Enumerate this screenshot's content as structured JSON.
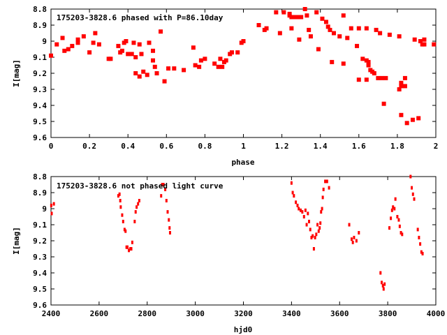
{
  "chart_data": [
    {
      "type": "scatter",
      "title": "175203-3828.6 phased with P=86.10day",
      "xlabel": "phase",
      "ylabel": "I[mag]",
      "xlim": [
        0,
        2
      ],
      "ylim": [
        9.6,
        8.8
      ],
      "y_inverted": true,
      "grid": false,
      "marker_color": "#ff0000",
      "x_ticks": [
        "0",
        "0.2",
        "0.4",
        "0.6",
        "0.8",
        "1",
        "1.2",
        "1.4",
        "1.6",
        "1.8",
        "2"
      ],
      "y_ticks": [
        "8.8",
        "8.9",
        "9",
        "9.1",
        "9.2",
        "9.3",
        "9.4",
        "9.5",
        "9.6"
      ],
      "points": [
        [
          0.0,
          9.09
        ],
        [
          0.03,
          9.02
        ],
        [
          0.06,
          8.98
        ],
        [
          0.07,
          9.06
        ],
        [
          0.09,
          9.05
        ],
        [
          0.11,
          9.03
        ],
        [
          0.14,
          9.01
        ],
        [
          0.14,
          8.99
        ],
        [
          0.17,
          8.97
        ],
        [
          0.2,
          9.07
        ],
        [
          0.22,
          9.01
        ],
        [
          0.23,
          8.95
        ],
        [
          0.25,
          9.02
        ],
        [
          0.3,
          9.11
        ],
        [
          0.31,
          9.11
        ],
        [
          0.35,
          9.03
        ],
        [
          0.36,
          9.07
        ],
        [
          0.37,
          9.06
        ],
        [
          0.38,
          9.01
        ],
        [
          0.39,
          9.0
        ],
        [
          0.4,
          9.08
        ],
        [
          0.42,
          9.08
        ],
        [
          0.43,
          9.01
        ],
        [
          0.44,
          9.1
        ],
        [
          0.44,
          9.2
        ],
        [
          0.46,
          9.22
        ],
        [
          0.46,
          9.02
        ],
        [
          0.47,
          9.08
        ],
        [
          0.48,
          9.19
        ],
        [
          0.5,
          9.21
        ],
        [
          0.51,
          9.01
        ],
        [
          0.53,
          9.06
        ],
        [
          0.53,
          9.12
        ],
        [
          0.54,
          9.16
        ],
        [
          0.55,
          9.2
        ],
        [
          0.57,
          8.94
        ],
        [
          0.59,
          9.25
        ],
        [
          0.61,
          9.17
        ],
        [
          0.64,
          9.17
        ],
        [
          0.69,
          9.18
        ],
        [
          0.74,
          9.04
        ],
        [
          0.75,
          9.15
        ],
        [
          0.77,
          9.16
        ],
        [
          0.78,
          9.12
        ],
        [
          0.8,
          9.11
        ],
        [
          0.85,
          9.14
        ],
        [
          0.87,
          9.16
        ],
        [
          0.88,
          9.11
        ],
        [
          0.89,
          9.16
        ],
        [
          0.9,
          9.13
        ],
        [
          0.91,
          9.12
        ],
        [
          0.93,
          9.08
        ],
        [
          0.94,
          9.07
        ],
        [
          0.97,
          9.07
        ],
        [
          0.99,
          9.01
        ],
        [
          1.0,
          9.0
        ],
        [
          1.08,
          8.9
        ],
        [
          1.11,
          8.93
        ],
        [
          1.12,
          8.92
        ],
        [
          1.17,
          8.82
        ],
        [
          1.19,
          8.95
        ],
        [
          1.21,
          8.82
        ],
        [
          1.24,
          8.83
        ],
        [
          1.24,
          8.84
        ],
        [
          1.25,
          8.85
        ],
        [
          1.25,
          8.92
        ],
        [
          1.26,
          8.85
        ],
        [
          1.28,
          8.85
        ],
        [
          1.29,
          8.99
        ],
        [
          1.3,
          8.85
        ],
        [
          1.32,
          8.8
        ],
        [
          1.33,
          8.84
        ],
        [
          1.34,
          8.93
        ],
        [
          1.35,
          8.97
        ],
        [
          1.38,
          8.82
        ],
        [
          1.39,
          9.05
        ],
        [
          1.41,
          8.86
        ],
        [
          1.43,
          8.88
        ],
        [
          1.44,
          8.91
        ],
        [
          1.45,
          8.93
        ],
        [
          1.46,
          9.13
        ],
        [
          1.47,
          8.95
        ],
        [
          1.5,
          8.97
        ],
        [
          1.52,
          8.84
        ],
        [
          1.52,
          9.14
        ],
        [
          1.54,
          8.98
        ],
        [
          1.56,
          8.92
        ],
        [
          1.59,
          9.03
        ],
        [
          1.6,
          9.24
        ],
        [
          1.6,
          8.92
        ],
        [
          1.62,
          9.11
        ],
        [
          1.64,
          9.24
        ],
        [
          1.64,
          8.92
        ],
        [
          1.64,
          9.12
        ],
        [
          1.65,
          9.13
        ],
        [
          1.65,
          9.15
        ],
        [
          1.66,
          9.18
        ],
        [
          1.67,
          9.19
        ],
        [
          1.68,
          9.2
        ],
        [
          1.69,
          8.93
        ],
        [
          1.7,
          9.23
        ],
        [
          1.71,
          8.95
        ],
        [
          1.72,
          9.23
        ],
        [
          1.73,
          9.39
        ],
        [
          1.74,
          9.23
        ],
        [
          1.76,
          8.96
        ],
        [
          1.81,
          8.97
        ],
        [
          1.81,
          9.3
        ],
        [
          1.82,
          9.28
        ],
        [
          1.82,
          9.26
        ],
        [
          1.82,
          9.46
        ],
        [
          1.84,
          9.28
        ],
        [
          1.84,
          9.23
        ],
        [
          1.85,
          9.51
        ],
        [
          1.88,
          9.49
        ],
        [
          1.89,
          8.99
        ],
        [
          1.91,
          9.48
        ],
        [
          1.92,
          9.0
        ],
        [
          1.93,
          9.02
        ],
        [
          1.94,
          8.99
        ],
        [
          1.94,
          9.02
        ],
        [
          1.99,
          9.02
        ]
      ]
    },
    {
      "type": "scatter",
      "title": "175203-3828.6 not phased light curve",
      "xlabel": "hjd0",
      "ylabel": "I[mag]",
      "xlim": [
        2400,
        4000
      ],
      "ylim": [
        9.6,
        8.8
      ],
      "y_inverted": true,
      "grid": false,
      "marker_color": "#ff0000",
      "x_ticks": [
        "2400",
        "2600",
        "2800",
        "3000",
        "3200",
        "3400",
        "3600",
        "3800",
        "4000"
      ],
      "y_ticks": [
        "8.8",
        "8.9",
        "9",
        "9.1",
        "9.2",
        "9.3",
        "9.4",
        "9.5",
        "9.6"
      ],
      "points": [
        [
          2401,
          8.98
        ],
        [
          2403,
          9.03
        ],
        [
          2412,
          8.97
        ],
        [
          2680,
          8.92
        ],
        [
          2685,
          8.91
        ],
        [
          2688,
          8.95
        ],
        [
          2690,
          8.99
        ],
        [
          2696,
          9.04
        ],
        [
          2700,
          9.08
        ],
        [
          2706,
          9.13
        ],
        [
          2710,
          9.14
        ],
        [
          2714,
          9.24
        ],
        [
          2718,
          9.24
        ],
        [
          2724,
          9.26
        ],
        [
          2730,
          9.25
        ],
        [
          2734,
          9.25
        ],
        [
          2738,
          9.21
        ],
        [
          2748,
          9.08
        ],
        [
          2752,
          9.02
        ],
        [
          2756,
          8.99
        ],
        [
          2762,
          8.97
        ],
        [
          2767,
          8.95
        ],
        [
          2858,
          8.92
        ],
        [
          2862,
          8.85
        ],
        [
          2868,
          8.85
        ],
        [
          2875,
          8.88
        ],
        [
          2880,
          8.95
        ],
        [
          2885,
          9.02
        ],
        [
          2890,
          9.07
        ],
        [
          2893,
          9.12
        ],
        [
          2895,
          9.15
        ],
        [
          3400,
          8.84
        ],
        [
          3405,
          8.9
        ],
        [
          3410,
          8.92
        ],
        [
          3418,
          8.96
        ],
        [
          3425,
          8.98
        ],
        [
          3430,
          9.0
        ],
        [
          3438,
          9.01
        ],
        [
          3445,
          9.02
        ],
        [
          3452,
          9.05
        ],
        [
          3458,
          9.01
        ],
        [
          3463,
          9.1
        ],
        [
          3468,
          9.03
        ],
        [
          3473,
          9.08
        ],
        [
          3478,
          9.13
        ],
        [
          3483,
          9.18
        ],
        [
          3488,
          9.17
        ],
        [
          3493,
          9.25
        ],
        [
          3498,
          9.18
        ],
        [
          3503,
          9.16
        ],
        [
          3508,
          9.1
        ],
        [
          3513,
          9.14
        ],
        [
          3517,
          9.12
        ],
        [
          3520,
          9.09
        ],
        [
          3523,
          9.02
        ],
        [
          3527,
          9.0
        ],
        [
          3530,
          8.93
        ],
        [
          3533,
          8.88
        ],
        [
          3540,
          8.83
        ],
        [
          3548,
          8.83
        ],
        [
          3556,
          8.87
        ],
        [
          3640,
          9.1
        ],
        [
          3650,
          9.19
        ],
        [
          3655,
          9.21
        ],
        [
          3660,
          9.18
        ],
        [
          3670,
          9.2
        ],
        [
          3680,
          9.15
        ],
        [
          3770,
          9.4
        ],
        [
          3775,
          9.46
        ],
        [
          3780,
          9.48
        ],
        [
          3783,
          9.5
        ],
        [
          3787,
          9.47
        ],
        [
          3807,
          9.12
        ],
        [
          3813,
          9.06
        ],
        [
          3818,
          9.01
        ],
        [
          3822,
          8.99
        ],
        [
          3828,
          9.0
        ],
        [
          3832,
          8.94
        ],
        [
          3840,
          9.05
        ],
        [
          3846,
          9.07
        ],
        [
          3850,
          9.11
        ],
        [
          3855,
          9.15
        ],
        [
          3860,
          9.16
        ],
        [
          3895,
          8.8
        ],
        [
          3900,
          8.87
        ],
        [
          3905,
          8.91
        ],
        [
          3910,
          8.94
        ],
        [
          3925,
          9.13
        ],
        [
          3930,
          9.18
        ],
        [
          3935,
          9.22
        ],
        [
          3940,
          9.27
        ],
        [
          3945,
          9.28
        ]
      ]
    }
  ]
}
